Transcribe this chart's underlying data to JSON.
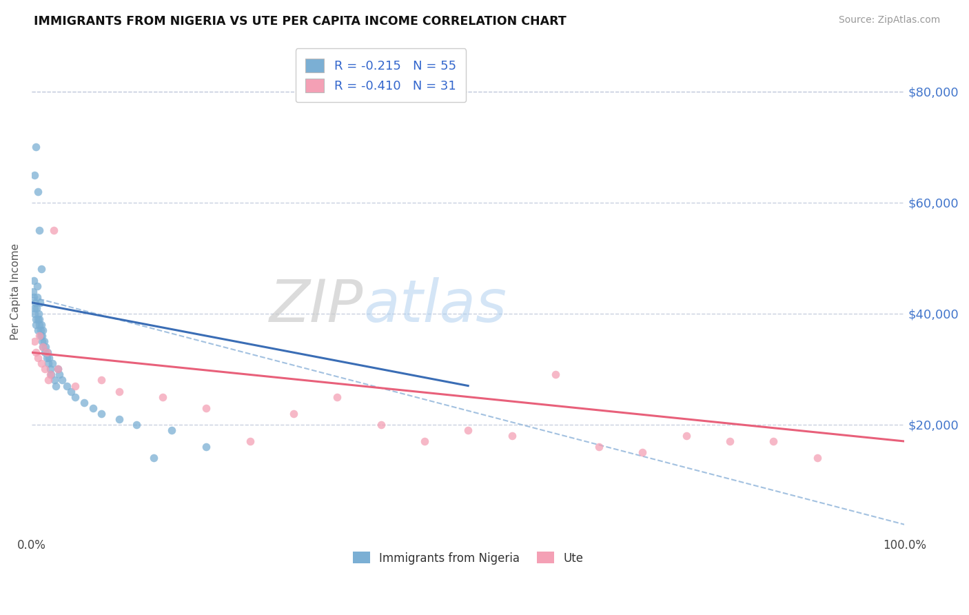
{
  "title": "IMMIGRANTS FROM NIGERIA VS UTE PER CAPITA INCOME CORRELATION CHART",
  "source": "Source: ZipAtlas.com",
  "ylabel": "Per Capita Income",
  "xlim": [
    0.0,
    100.0
  ],
  "ylim": [
    0,
    88000
  ],
  "yticks": [
    20000,
    40000,
    60000,
    80000
  ],
  "xticks": [
    0.0,
    100.0
  ],
  "xtick_labels": [
    "0.0%",
    "100.0%"
  ],
  "ytick_labels": [
    "$20,000",
    "$40,000",
    "$60,000",
    "$80,000"
  ],
  "grid_color": "#c8d0e0",
  "background_color": "#ffffff",
  "nigeria_color": "#7bafd4",
  "ute_color": "#f4a0b5",
  "nigeria_line_color": "#3a6db5",
  "ute_line_color": "#e8607a",
  "combined_line_color": "#99bbdd",
  "nigeria_scatter_x": [
    0.15,
    0.2,
    0.25,
    0.3,
    0.35,
    0.4,
    0.45,
    0.5,
    0.55,
    0.6,
    0.65,
    0.7,
    0.75,
    0.8,
    0.85,
    0.9,
    0.95,
    1.0,
    1.05,
    1.1,
    1.15,
    1.2,
    1.25,
    1.3,
    1.4,
    1.5,
    1.6,
    1.7,
    1.8,
    1.9,
    2.0,
    2.1,
    2.2,
    2.4,
    2.6,
    2.8,
    3.0,
    3.2,
    3.5,
    4.0,
    4.5,
    5.0,
    6.0,
    7.0,
    8.0,
    10.0,
    12.0,
    14.0,
    16.0,
    20.0,
    0.3,
    0.5,
    0.7,
    0.9,
    1.1
  ],
  "nigeria_scatter_y": [
    44000,
    43000,
    46000,
    41000,
    40000,
    42000,
    39000,
    38000,
    41000,
    45000,
    43000,
    39000,
    37000,
    40000,
    38000,
    39000,
    42000,
    37000,
    36000,
    38000,
    35000,
    36000,
    34000,
    37000,
    35000,
    33000,
    34000,
    32000,
    33000,
    31000,
    32000,
    30000,
    29000,
    31000,
    28000,
    27000,
    30000,
    29000,
    28000,
    27000,
    26000,
    25000,
    24000,
    23000,
    22000,
    21000,
    20000,
    14000,
    19000,
    16000,
    65000,
    70000,
    62000,
    55000,
    48000
  ],
  "ute_scatter_x": [
    0.3,
    0.5,
    0.7,
    0.9,
    1.1,
    1.3,
    1.5,
    1.7,
    1.9,
    2.1,
    2.5,
    3.0,
    5.0,
    8.0,
    10.0,
    15.0,
    20.0,
    25.0,
    30.0,
    35.0,
    40.0,
    45.0,
    50.0,
    55.0,
    60.0,
    65.0,
    70.0,
    75.0,
    80.0,
    85.0,
    90.0
  ],
  "ute_scatter_y": [
    35000,
    33000,
    32000,
    36000,
    31000,
    34000,
    30000,
    33000,
    28000,
    29000,
    55000,
    30000,
    27000,
    28000,
    26000,
    25000,
    23000,
    17000,
    22000,
    25000,
    20000,
    17000,
    19000,
    18000,
    29000,
    16000,
    15000,
    18000,
    17000,
    17000,
    14000
  ],
  "nigeria_trend_x": [
    0.0,
    50.0
  ],
  "nigeria_trend_y": [
    42000,
    27000
  ],
  "ute_trend_x": [
    0.0,
    100.0
  ],
  "ute_trend_y": [
    33000,
    17000
  ],
  "combined_trend_x": [
    0.0,
    100.0
  ],
  "combined_trend_y": [
    43000,
    2000
  ]
}
